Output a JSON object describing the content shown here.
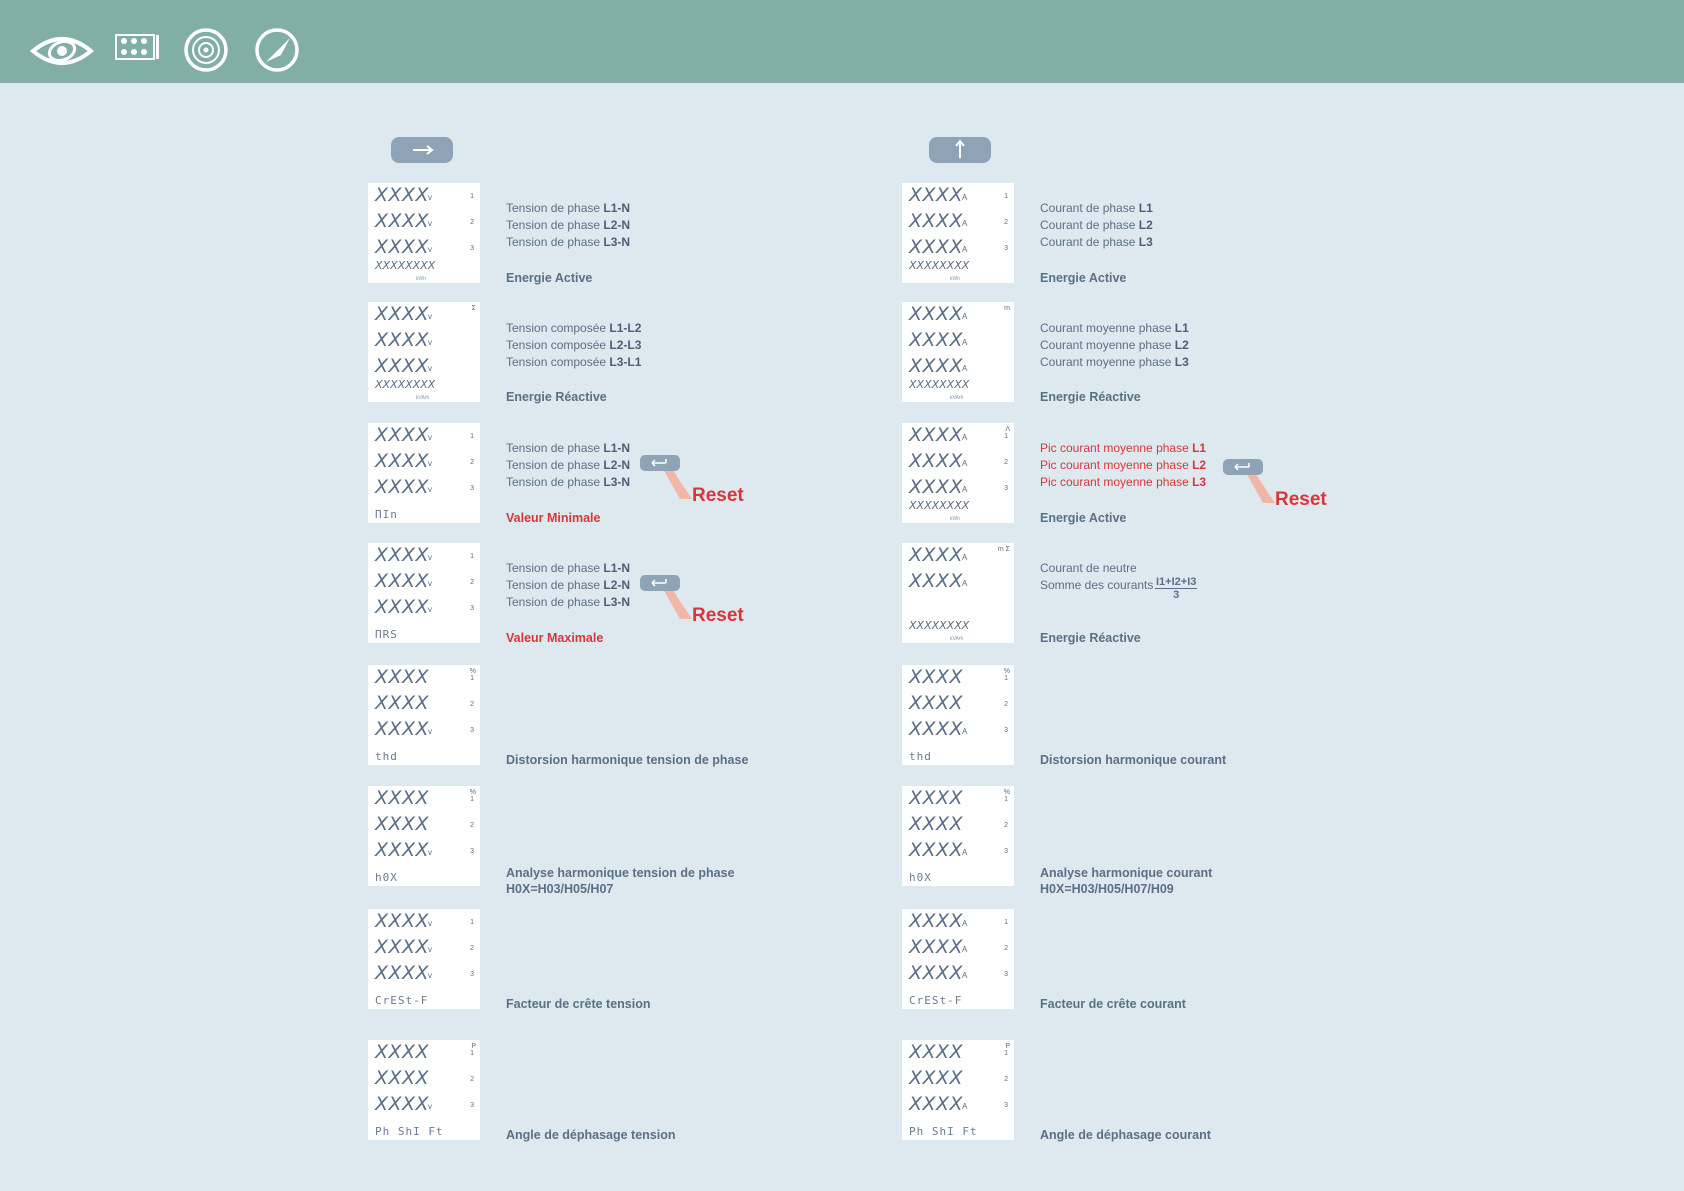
{
  "colors": {
    "header": "#82afa5",
    "background": "#dde9ee",
    "text": "#5b6f86",
    "accent_red": "#d8363a",
    "button": "#8fa3b6"
  },
  "header_icons": [
    "eye-icon",
    "keypad-icon",
    "target-icon",
    "compass-icon"
  ],
  "nav_buttons": {
    "left": "right-arrow-icon",
    "right": "up-arrow-icon"
  },
  "reset_label": "Reset",
  "left": [
    {
      "d": [
        "XXXX",
        "XXXX",
        "XXXX"
      ],
      "u": [
        "v",
        "v",
        "v"
      ],
      "p": [
        "1",
        "2",
        "3"
      ],
      "corner": "",
      "bot": "XXXXXXXX",
      "bot_small": "kWh",
      "bot_style": "digits",
      "lines": [
        [
          "Tension de phase ",
          "L1-N"
        ],
        [
          "Tension de phase ",
          "L2-N"
        ],
        [
          "Tension de phase ",
          "L3-N"
        ]
      ],
      "line_red": false,
      "title": "Energie Active",
      "title_red": false,
      "reset": false
    },
    {
      "d": [
        "XXXX",
        "XXXX",
        "XXXX"
      ],
      "u": [
        "v",
        "v",
        "v"
      ],
      "p": [
        "",
        "",
        ""
      ],
      "corner": "Σ",
      "bot": "XXXXXXXX",
      "bot_small": "kVArh",
      "bot_style": "digits",
      "lines": [
        [
          "Tension composée ",
          "L1-L2"
        ],
        [
          "Tension composée ",
          "L2-L3"
        ],
        [
          "Tension composée ",
          "L3-L1"
        ]
      ],
      "line_red": false,
      "title": "Energie Réactive",
      "title_red": false,
      "reset": false
    },
    {
      "d": [
        "XXXX",
        "XXXX",
        "XXXX"
      ],
      "u": [
        "v",
        "v",
        "v"
      ],
      "p": [
        "1",
        "2",
        "3"
      ],
      "corner": "",
      "bot": "ΠIn",
      "bot_small": "",
      "bot_style": "seg",
      "lines": [
        [
          "Tension de phase ",
          "L1-N"
        ],
        [
          "Tension de phase ",
          "L2-N"
        ],
        [
          "Tension de phase ",
          "L3-N"
        ]
      ],
      "line_red": false,
      "title": "Valeur Minimale",
      "title_red": true,
      "reset": true
    },
    {
      "d": [
        "XXXX",
        "XXXX",
        "XXXX"
      ],
      "u": [
        "v",
        "v",
        "v"
      ],
      "p": [
        "1",
        "2",
        "3"
      ],
      "corner": "",
      "bot": "ΠRS",
      "bot_small": "",
      "bot_style": "seg",
      "lines": [
        [
          "Tension de phase ",
          "L1-N"
        ],
        [
          "Tension de phase ",
          "L2-N"
        ],
        [
          "Tension de phase ",
          "L3-N"
        ]
      ],
      "line_red": false,
      "title": "Valeur Maximale",
      "title_red": true,
      "reset": true
    },
    {
      "d": [
        "XXXX",
        "XXXX",
        "XXXX"
      ],
      "u": [
        "",
        "",
        "v"
      ],
      "p": [
        "1",
        "2",
        "3"
      ],
      "corner": "%",
      "bot": "thd",
      "bot_small": "",
      "bot_style": "seg",
      "lines": [],
      "line_red": false,
      "title": "Distorsion harmonique tension de phase",
      "title_red": false,
      "reset": false
    },
    {
      "d": [
        "XXXX",
        "XXXX",
        "XXXX"
      ],
      "u": [
        "",
        "",
        "v"
      ],
      "p": [
        "1",
        "2",
        "3"
      ],
      "corner": "%",
      "bot": "h0X",
      "bot_small": "",
      "bot_style": "seg",
      "lines": [],
      "line_red": false,
      "title": "Analyse harmonique tension de phase",
      "title2": "H0X=H03/H05/H07",
      "title_red": false,
      "reset": false
    },
    {
      "d": [
        "XXXX",
        "XXXX",
        "XXXX"
      ],
      "u": [
        "v",
        "v",
        "v"
      ],
      "p": [
        "1",
        "2",
        "3"
      ],
      "corner": "",
      "bot": "CrESt-F",
      "bot_small": "",
      "bot_style": "seg",
      "lines": [],
      "line_red": false,
      "title": "Facteur de crête tension",
      "title_red": false,
      "reset": false
    },
    {
      "d": [
        "XXXX",
        "XXXX",
        "XXXX"
      ],
      "u": [
        "",
        "",
        "v"
      ],
      "p": [
        "1",
        "2",
        "3"
      ],
      "corner": "P",
      "bot": "Ph ShI Ft",
      "bot_small": "",
      "bot_style": "seg",
      "lines": [],
      "line_red": false,
      "title": "Angle de déphasage tension",
      "title_red": false,
      "reset": false
    }
  ],
  "right": [
    {
      "d": [
        "XXXX",
        "XXXX",
        "XXXX"
      ],
      "u": [
        "A",
        "A",
        "A"
      ],
      "p": [
        "1",
        "2",
        "3"
      ],
      "corner": "",
      "bot": "XXXXXXXX",
      "bot_small": "kWh",
      "bot_style": "digits",
      "lines": [
        [
          "Courant de phase ",
          "L1"
        ],
        [
          "Courant de phase ",
          "L2"
        ],
        [
          "Courant de phase ",
          "L3"
        ]
      ],
      "line_red": false,
      "title": "Energie Active",
      "title_red": false,
      "reset": false
    },
    {
      "d": [
        "XXXX",
        "XXXX",
        "XXXX"
      ],
      "u": [
        "A",
        "A",
        "A"
      ],
      "p": [
        "",
        "",
        ""
      ],
      "corner": "m",
      "bot": "XXXXXXXX",
      "bot_small": "kVArh",
      "bot_style": "digits",
      "lines": [
        [
          "Courant moyenne phase ",
          "L1"
        ],
        [
          "Courant moyenne phase ",
          "L2"
        ],
        [
          "Courant moyenne phase ",
          "L3"
        ]
      ],
      "line_red": false,
      "title": "Energie Réactive",
      "title_red": false,
      "reset": false
    },
    {
      "d": [
        "XXXX",
        "XXXX",
        "XXXX"
      ],
      "u": [
        "A",
        "A",
        "A"
      ],
      "p": [
        "1",
        "2",
        "3"
      ],
      "corner": "Λ",
      "bot": "XXXXXXXX",
      "bot_small": "kWh",
      "bot_style": "digits",
      "lines": [
        [
          "Pic courant moyenne phase  ",
          "L1"
        ],
        [
          "Pic courant moyenne phase  ",
          "L2"
        ],
        [
          "Pic courant moyenne phase  ",
          "L3"
        ]
      ],
      "line_red": true,
      "title": "Energie Active",
      "title_red": false,
      "reset": true
    },
    {
      "d": [
        "XXXX",
        "XXXX",
        ""
      ],
      "u": [
        "A",
        "A",
        ""
      ],
      "p": [
        "",
        "",
        ""
      ],
      "corner": "m Σ",
      "bot": "XXXXXXXX",
      "bot_small": "kVArh",
      "bot_style": "digits",
      "lines": [
        [
          "Courant de neutre",
          ""
        ],
        [
          "Somme des courants",
          ""
        ]
      ],
      "line_red": false,
      "frac_num": "I1+I2+I3",
      "frac_den": "3",
      "title": "Energie Réactive",
      "title_red": false,
      "reset": false
    },
    {
      "d": [
        "XXXX",
        "XXXX",
        "XXXX"
      ],
      "u": [
        "",
        "",
        "A"
      ],
      "p": [
        "1",
        "2",
        "3"
      ],
      "corner": "%",
      "bot": "thd",
      "bot_small": "",
      "bot_style": "seg",
      "lines": [],
      "line_red": false,
      "title": "Distorsion harmonique courant",
      "title_red": false,
      "reset": false
    },
    {
      "d": [
        "XXXX",
        "XXXX",
        "XXXX"
      ],
      "u": [
        "",
        "",
        "A"
      ],
      "p": [
        "1",
        "2",
        "3"
      ],
      "corner": "%",
      "bot": "h0X",
      "bot_small": "",
      "bot_style": "seg",
      "lines": [],
      "line_red": false,
      "title": "Analyse harmonique courant",
      "title2": "H0X=H03/H05/H07/H09",
      "title_red": false,
      "reset": false
    },
    {
      "d": [
        "XXXX",
        "XXXX",
        "XXXX"
      ],
      "u": [
        "A",
        "A",
        "A"
      ],
      "p": [
        "1",
        "2",
        "3"
      ],
      "corner": "",
      "bot": "CrESt-F",
      "bot_small": "",
      "bot_style": "seg",
      "lines": [],
      "line_red": false,
      "title": "Facteur de crête courant",
      "title_red": false,
      "reset": false
    },
    {
      "d": [
        "XXXX",
        "XXXX",
        "XXXX"
      ],
      "u": [
        "",
        "",
        "A"
      ],
      "p": [
        "1",
        "2",
        "3"
      ],
      "corner": "P",
      "bot": "Ph ShI Ft",
      "bot_small": "",
      "bot_style": "seg",
      "lines": [],
      "line_red": false,
      "title": "Angle de déphasage courant",
      "title_red": false,
      "reset": false
    }
  ]
}
